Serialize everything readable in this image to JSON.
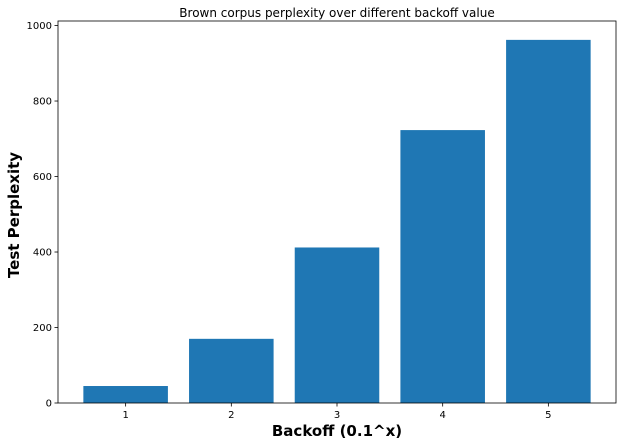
{
  "chart_data": {
    "type": "bar",
    "title": "Brown corpus perplexity over different backoff value",
    "xlabel": "Backoff (0.1^x)",
    "ylabel": "Test Perplexity",
    "categories": [
      "1",
      "2",
      "3",
      "4",
      "5"
    ],
    "values": [
      45,
      170,
      412,
      723,
      962
    ],
    "ylim": [
      0,
      1012
    ],
    "yticks": [
      0,
      200,
      400,
      600,
      800,
      1000
    ],
    "grid": false,
    "bar_color": "#1f77b4"
  }
}
